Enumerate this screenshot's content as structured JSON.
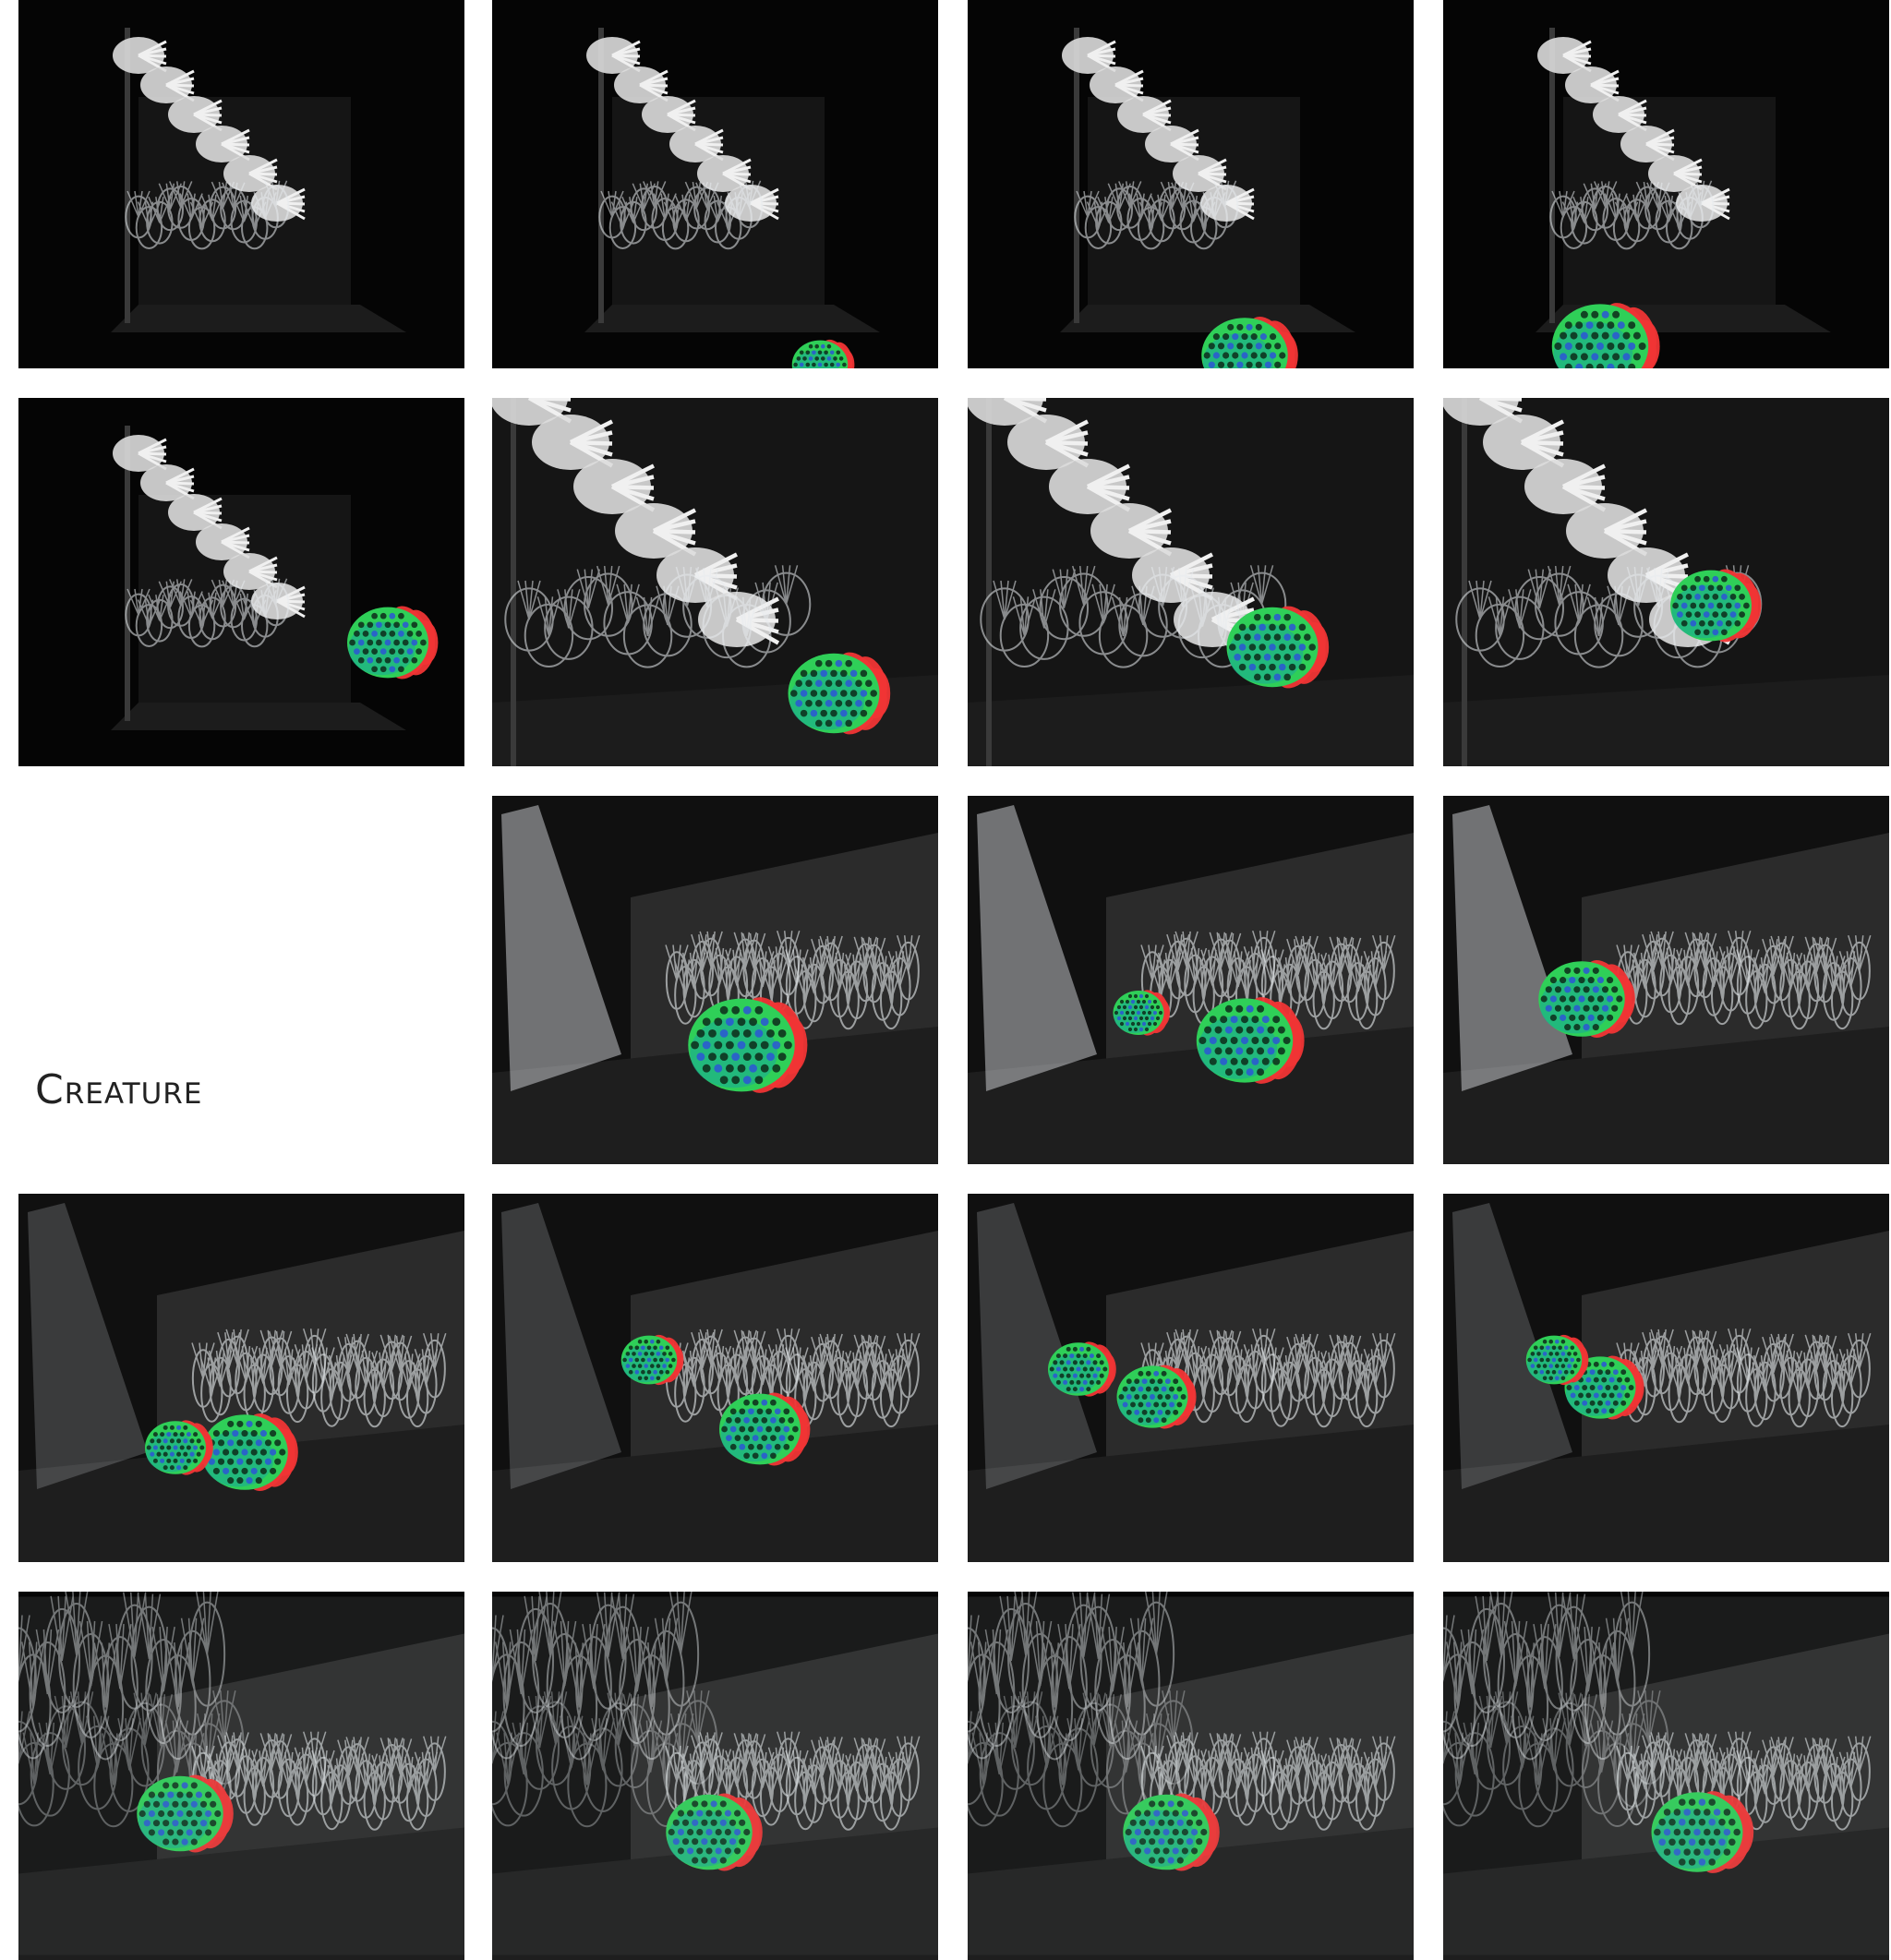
{
  "page": {
    "title": "Creature"
  },
  "colors": {
    "background": "#ffffff",
    "frame": "#050505",
    "stage_floor": "#1e1e1e",
    "stage_wall": "#2b2b2b",
    "acrylic": "#e8ecef",
    "creature_green": "#2fcf58",
    "creature_teal": "#17a79a",
    "creature_blue": "#2b55d6",
    "creature_red": "#f03535"
  },
  "frames": [
    {
      "scene": "dark",
      "creature": "none"
    },
    {
      "scene": "dark",
      "creature": "peek-small"
    },
    {
      "scene": "dark",
      "creature": "peek-medium"
    },
    {
      "scene": "dark",
      "creature": "peek-large"
    },
    {
      "scene": "dark",
      "creature": "near-wall"
    },
    {
      "scene": "dark-close",
      "creature": "bottom-right"
    },
    {
      "scene": "dark-close",
      "creature": "center-right"
    },
    {
      "scene": "dark-close",
      "creature": "under-tree"
    },
    {
      "scene": "stage",
      "creature": "front"
    },
    {
      "scene": "stage",
      "creature": "pair"
    },
    {
      "scene": "stage",
      "creature": "middle"
    },
    {
      "scene": "stage-wide",
      "creature": "group-left"
    },
    {
      "scene": "stage-wide",
      "creature": "group-center"
    },
    {
      "scene": "stage-wide",
      "creature": "group-right"
    },
    {
      "scene": "stage-wide",
      "creature": "group-far"
    },
    {
      "scene": "stage-blur",
      "creature": "blur-1"
    },
    {
      "scene": "stage-blur",
      "creature": "blur-2"
    },
    {
      "scene": "stage-blur",
      "creature": "blur-3"
    },
    {
      "scene": "stage-blur",
      "creature": "blur-4"
    }
  ]
}
